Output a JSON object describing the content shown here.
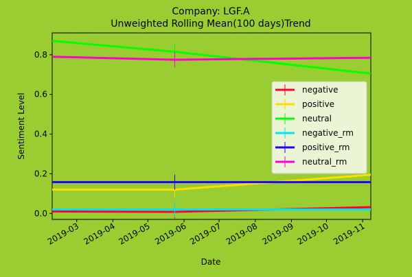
{
  "chart_data": {
    "type": "line",
    "title": "Company: LGF.A",
    "subtitle": "Unweighted Rolling Mean(100 days)Trend",
    "xlabel": "Date",
    "ylabel": "Sentiment Level",
    "x_ticks": [
      "2019-03",
      "2019-04",
      "2019-05",
      "2019-06",
      "2019-07",
      "2019-08",
      "2019-09",
      "2019-10",
      "2019-11"
    ],
    "y_ticks": [
      "0.0",
      "0.2",
      "0.4",
      "0.6",
      "0.8"
    ],
    "xlim": [
      "2019-02-08",
      "2019-11-08"
    ],
    "ylim": [
      -0.03,
      0.91
    ],
    "grid": false,
    "legend_position": "right",
    "series": [
      {
        "name": "negative",
        "color": "#ff0033",
        "x": [
          "2019-02-08",
          "2019-05-24",
          "2019-11-08"
        ],
        "y": [
          0.01,
          0.008,
          0.032
        ]
      },
      {
        "name": "positive",
        "color": "#ffdd00",
        "x": [
          "2019-02-08",
          "2019-05-24",
          "2019-11-08"
        ],
        "y": [
          0.12,
          0.12,
          0.195
        ]
      },
      {
        "name": "neutral",
        "color": "#00ff00",
        "x": [
          "2019-02-08",
          "2019-05-24",
          "2019-11-08"
        ],
        "y": [
          0.87,
          0.815,
          0.705
        ]
      },
      {
        "name": "negative_rm",
        "color": "#00e5ee",
        "x": [
          "2019-02-08",
          "2019-05-24",
          "2019-11-08"
        ],
        "y": [
          0.02,
          0.02,
          0.02
        ]
      },
      {
        "name": "positive_rm",
        "color": "#2200ff",
        "x": [
          "2019-02-08",
          "2019-05-24",
          "2019-11-08"
        ],
        "y": [
          0.158,
          0.158,
          0.158
        ]
      },
      {
        "name": "neutral_rm",
        "color": "#ff00cc",
        "x": [
          "2019-02-08",
          "2019-05-24",
          "2019-11-08"
        ],
        "y": [
          0.79,
          0.775,
          0.785
        ]
      }
    ],
    "errorbar_x": "2019-05-24"
  }
}
